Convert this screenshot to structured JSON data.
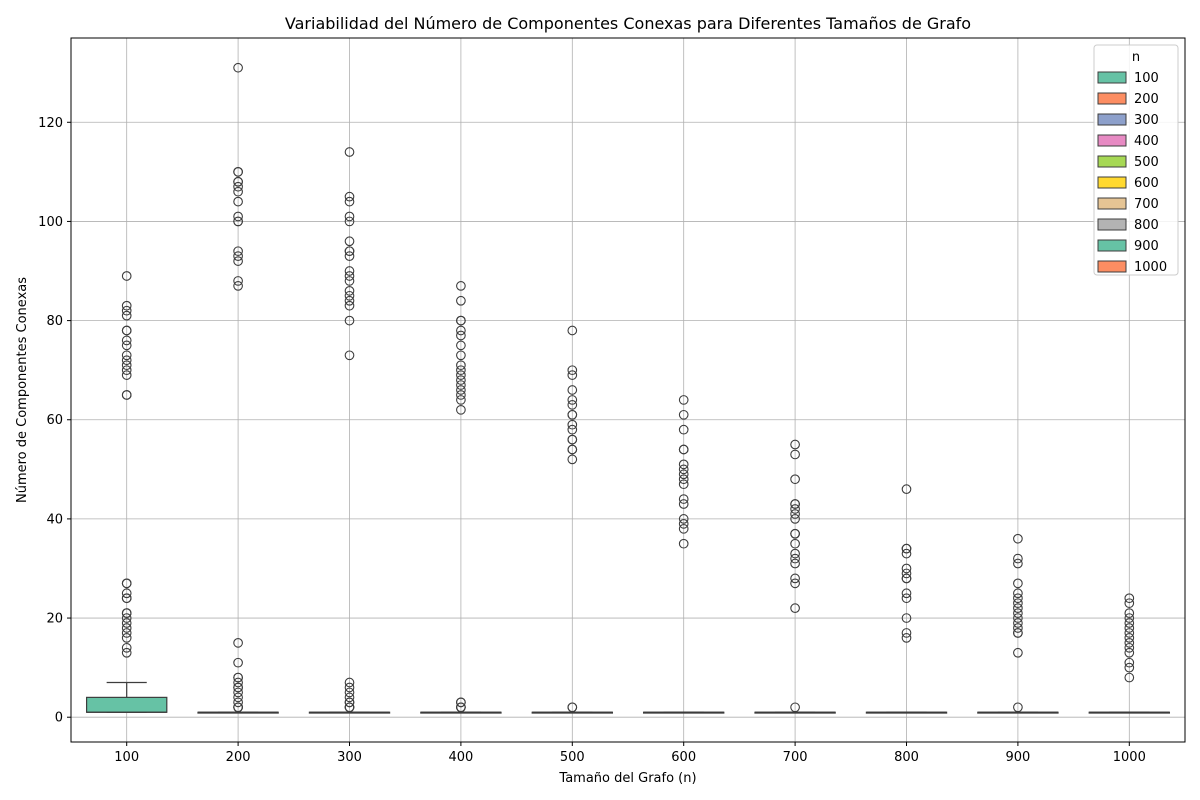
{
  "chart_data": {
    "type": "box",
    "title": "Variabilidad del Número de Componentes Conexas para Diferentes Tamaños de Grafo",
    "xlabel": "Tamaño del Grafo (n)",
    "ylabel": "Número de Componentes Conexas",
    "ylim": [
      -5,
      137
    ],
    "yticks": [
      0,
      20,
      40,
      60,
      80,
      100,
      120
    ],
    "grid": true,
    "legend": {
      "title": "n",
      "position": "top-right"
    },
    "categories": [
      "100",
      "200",
      "300",
      "400",
      "500",
      "600",
      "700",
      "800",
      "900",
      "1000"
    ],
    "series": [
      {
        "name": "100",
        "color": "#66c2a5",
        "q1": 1,
        "median": 1,
        "q3": 4,
        "whisker_low": 1,
        "whisker_high": 7,
        "outliers": [
          89,
          83,
          82,
          81,
          78,
          78,
          76,
          75,
          73,
          72,
          71,
          70,
          69,
          65,
          65,
          27,
          27,
          25,
          24,
          24,
          21,
          21,
          20,
          19,
          18,
          17,
          16,
          14,
          13
        ]
      },
      {
        "name": "200",
        "color": "#fc8d62",
        "q1": 1,
        "median": 1,
        "q3": 1,
        "whisker_low": 1,
        "whisker_high": 1,
        "outliers": [
          131,
          110,
          110,
          108,
          108,
          107,
          106,
          104,
          101,
          100,
          100,
          94,
          93,
          92,
          88,
          87,
          15,
          11,
          8,
          8,
          7,
          6,
          6,
          5,
          4,
          3,
          2,
          2,
          2
        ]
      },
      {
        "name": "300",
        "color": "#8da0cb",
        "q1": 1,
        "median": 1,
        "q3": 1,
        "whisker_low": 1,
        "whisker_high": 1,
        "outliers": [
          114,
          105,
          104,
          101,
          100,
          96,
          94,
          94,
          93,
          90,
          89,
          88,
          86,
          85,
          84,
          83,
          80,
          73,
          7,
          6,
          5,
          4,
          3,
          3,
          2,
          2,
          2
        ]
      },
      {
        "name": "400",
        "color": "#e78ac3",
        "q1": 1,
        "median": 1,
        "q3": 1,
        "whisker_low": 1,
        "whisker_high": 1,
        "outliers": [
          87,
          84,
          80,
          80,
          78,
          77,
          75,
          73,
          71,
          70,
          69,
          68,
          67,
          66,
          65,
          64,
          62,
          3,
          3,
          2,
          2,
          2
        ]
      },
      {
        "name": "500",
        "color": "#a6d854",
        "q1": 1,
        "median": 1,
        "q3": 1,
        "whisker_low": 1,
        "whisker_high": 1,
        "outliers": [
          78,
          70,
          69,
          66,
          64,
          63,
          61,
          61,
          59,
          58,
          56,
          56,
          54,
          54,
          52,
          2,
          2
        ]
      },
      {
        "name": "600",
        "color": "#ffd92f",
        "q1": 1,
        "median": 1,
        "q3": 1,
        "whisker_low": 1,
        "whisker_high": 1,
        "outliers": [
          64,
          61,
          58,
          54,
          54,
          51,
          50,
          49,
          48,
          47,
          44,
          43,
          40,
          39,
          38,
          35
        ]
      },
      {
        "name": "700",
        "color": "#e5c494",
        "q1": 1,
        "median": 1,
        "q3": 1,
        "whisker_low": 1,
        "whisker_high": 1,
        "outliers": [
          55,
          53,
          48,
          43,
          43,
          42,
          41,
          40,
          37,
          37,
          35,
          33,
          32,
          31,
          28,
          27,
          22,
          2
        ]
      },
      {
        "name": "800",
        "color": "#b3b3b3",
        "q1": 1,
        "median": 1,
        "q3": 1,
        "whisker_low": 1,
        "whisker_high": 1,
        "outliers": [
          46,
          34,
          34,
          33,
          30,
          29,
          28,
          28,
          25,
          24,
          20,
          17,
          16
        ]
      },
      {
        "name": "900",
        "color": "#66c2a5",
        "q1": 1,
        "median": 1,
        "q3": 1,
        "whisker_low": 1,
        "whisker_high": 1,
        "outliers": [
          36,
          32,
          31,
          27,
          25,
          24,
          23,
          22,
          21,
          20,
          19,
          18,
          17,
          17,
          13,
          2
        ]
      },
      {
        "name": "1000",
        "color": "#fc8d62",
        "q1": 1,
        "median": 1,
        "q3": 1,
        "whisker_low": 1,
        "whisker_high": 1,
        "outliers": [
          24,
          23,
          21,
          20,
          19,
          18,
          17,
          16,
          15,
          14,
          13,
          11,
          10,
          8
        ]
      }
    ]
  }
}
